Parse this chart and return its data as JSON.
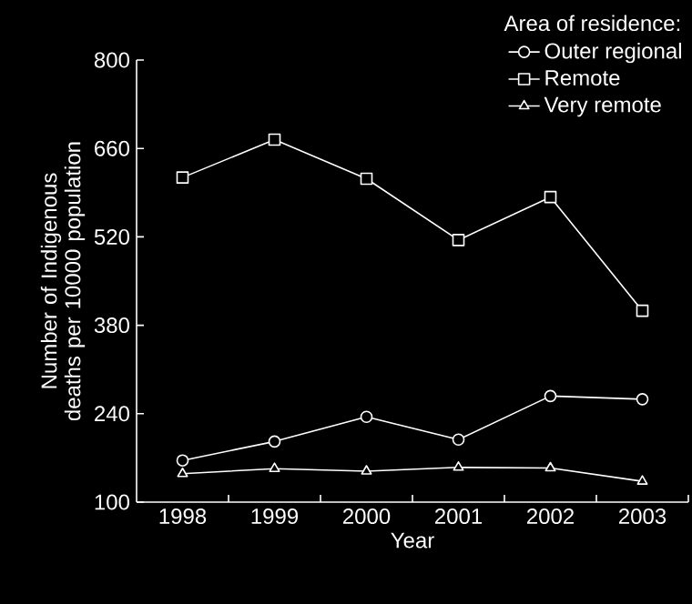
{
  "chart_data": {
    "type": "line",
    "xlabel": "Year",
    "ylabel": "Number of Indigenous deaths per 10000 population",
    "legend_title": "Area of residence:",
    "categories": [
      "1998",
      "1999",
      "2000",
      "2001",
      "2002",
      "2003"
    ],
    "series": [
      {
        "name": "Outer regional",
        "color": "#ffffff",
        "marker": "circle",
        "values": [
          166,
          196,
          235,
          199,
          268,
          263
        ]
      },
      {
        "name": "Remote",
        "color": "#ffffff",
        "marker": "square",
        "values": [
          614,
          674,
          612,
          515,
          583,
          403
        ]
      },
      {
        "name": "Very remote",
        "color": "#ffffff",
        "marker": "triangle",
        "values": [
          145,
          153,
          149,
          155,
          154,
          133
        ]
      }
    ],
    "ylim": [
      100,
      800
    ],
    "yticks": [
      100,
      240,
      380,
      520,
      660,
      800
    ],
    "grid": false,
    "legend": "top right",
    "line_style": "solid"
  }
}
